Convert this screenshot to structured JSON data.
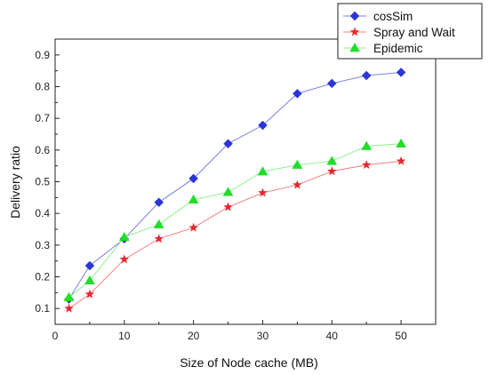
{
  "chart_data": {
    "type": "line",
    "title": "",
    "xlabel": "Size of Node cache (MB)",
    "ylabel": "Delivery ratio",
    "x": [
      2,
      5,
      10,
      15,
      20,
      25,
      30,
      35,
      40,
      45,
      50
    ],
    "xlim": [
      0,
      55
    ],
    "ylim": [
      0.05,
      0.95
    ],
    "x_ticks": [
      "0",
      "10",
      "20",
      "30",
      "40",
      "50"
    ],
    "y_ticks": [
      "0.1",
      "0.2",
      "0.3",
      "0.4",
      "0.5",
      "0.6",
      "0.7",
      "0.8",
      "0.9"
    ],
    "legend_position": "top-right",
    "grid": false,
    "series": [
      {
        "name": "cosSim",
        "color": "#2a36d6",
        "line_color": "#7a80e0",
        "marker": "diamond",
        "values": [
          0.13,
          0.235,
          0.32,
          0.435,
          0.51,
          0.62,
          0.678,
          0.778,
          0.81,
          0.835,
          0.845
        ]
      },
      {
        "name": "Spray and Wait",
        "color": "#e8262e",
        "line_color": "#f08080",
        "marker": "star",
        "values": [
          0.1,
          0.145,
          0.255,
          0.32,
          0.355,
          0.42,
          0.465,
          0.49,
          0.533,
          0.553,
          0.565
        ]
      },
      {
        "name": "Epidemic",
        "color": "#22dd2a",
        "line_color": "#8ef08e",
        "marker": "triangle",
        "values": [
          0.135,
          0.188,
          0.325,
          0.365,
          0.443,
          0.467,
          0.532,
          0.553,
          0.565,
          0.612,
          0.62
        ]
      }
    ]
  }
}
